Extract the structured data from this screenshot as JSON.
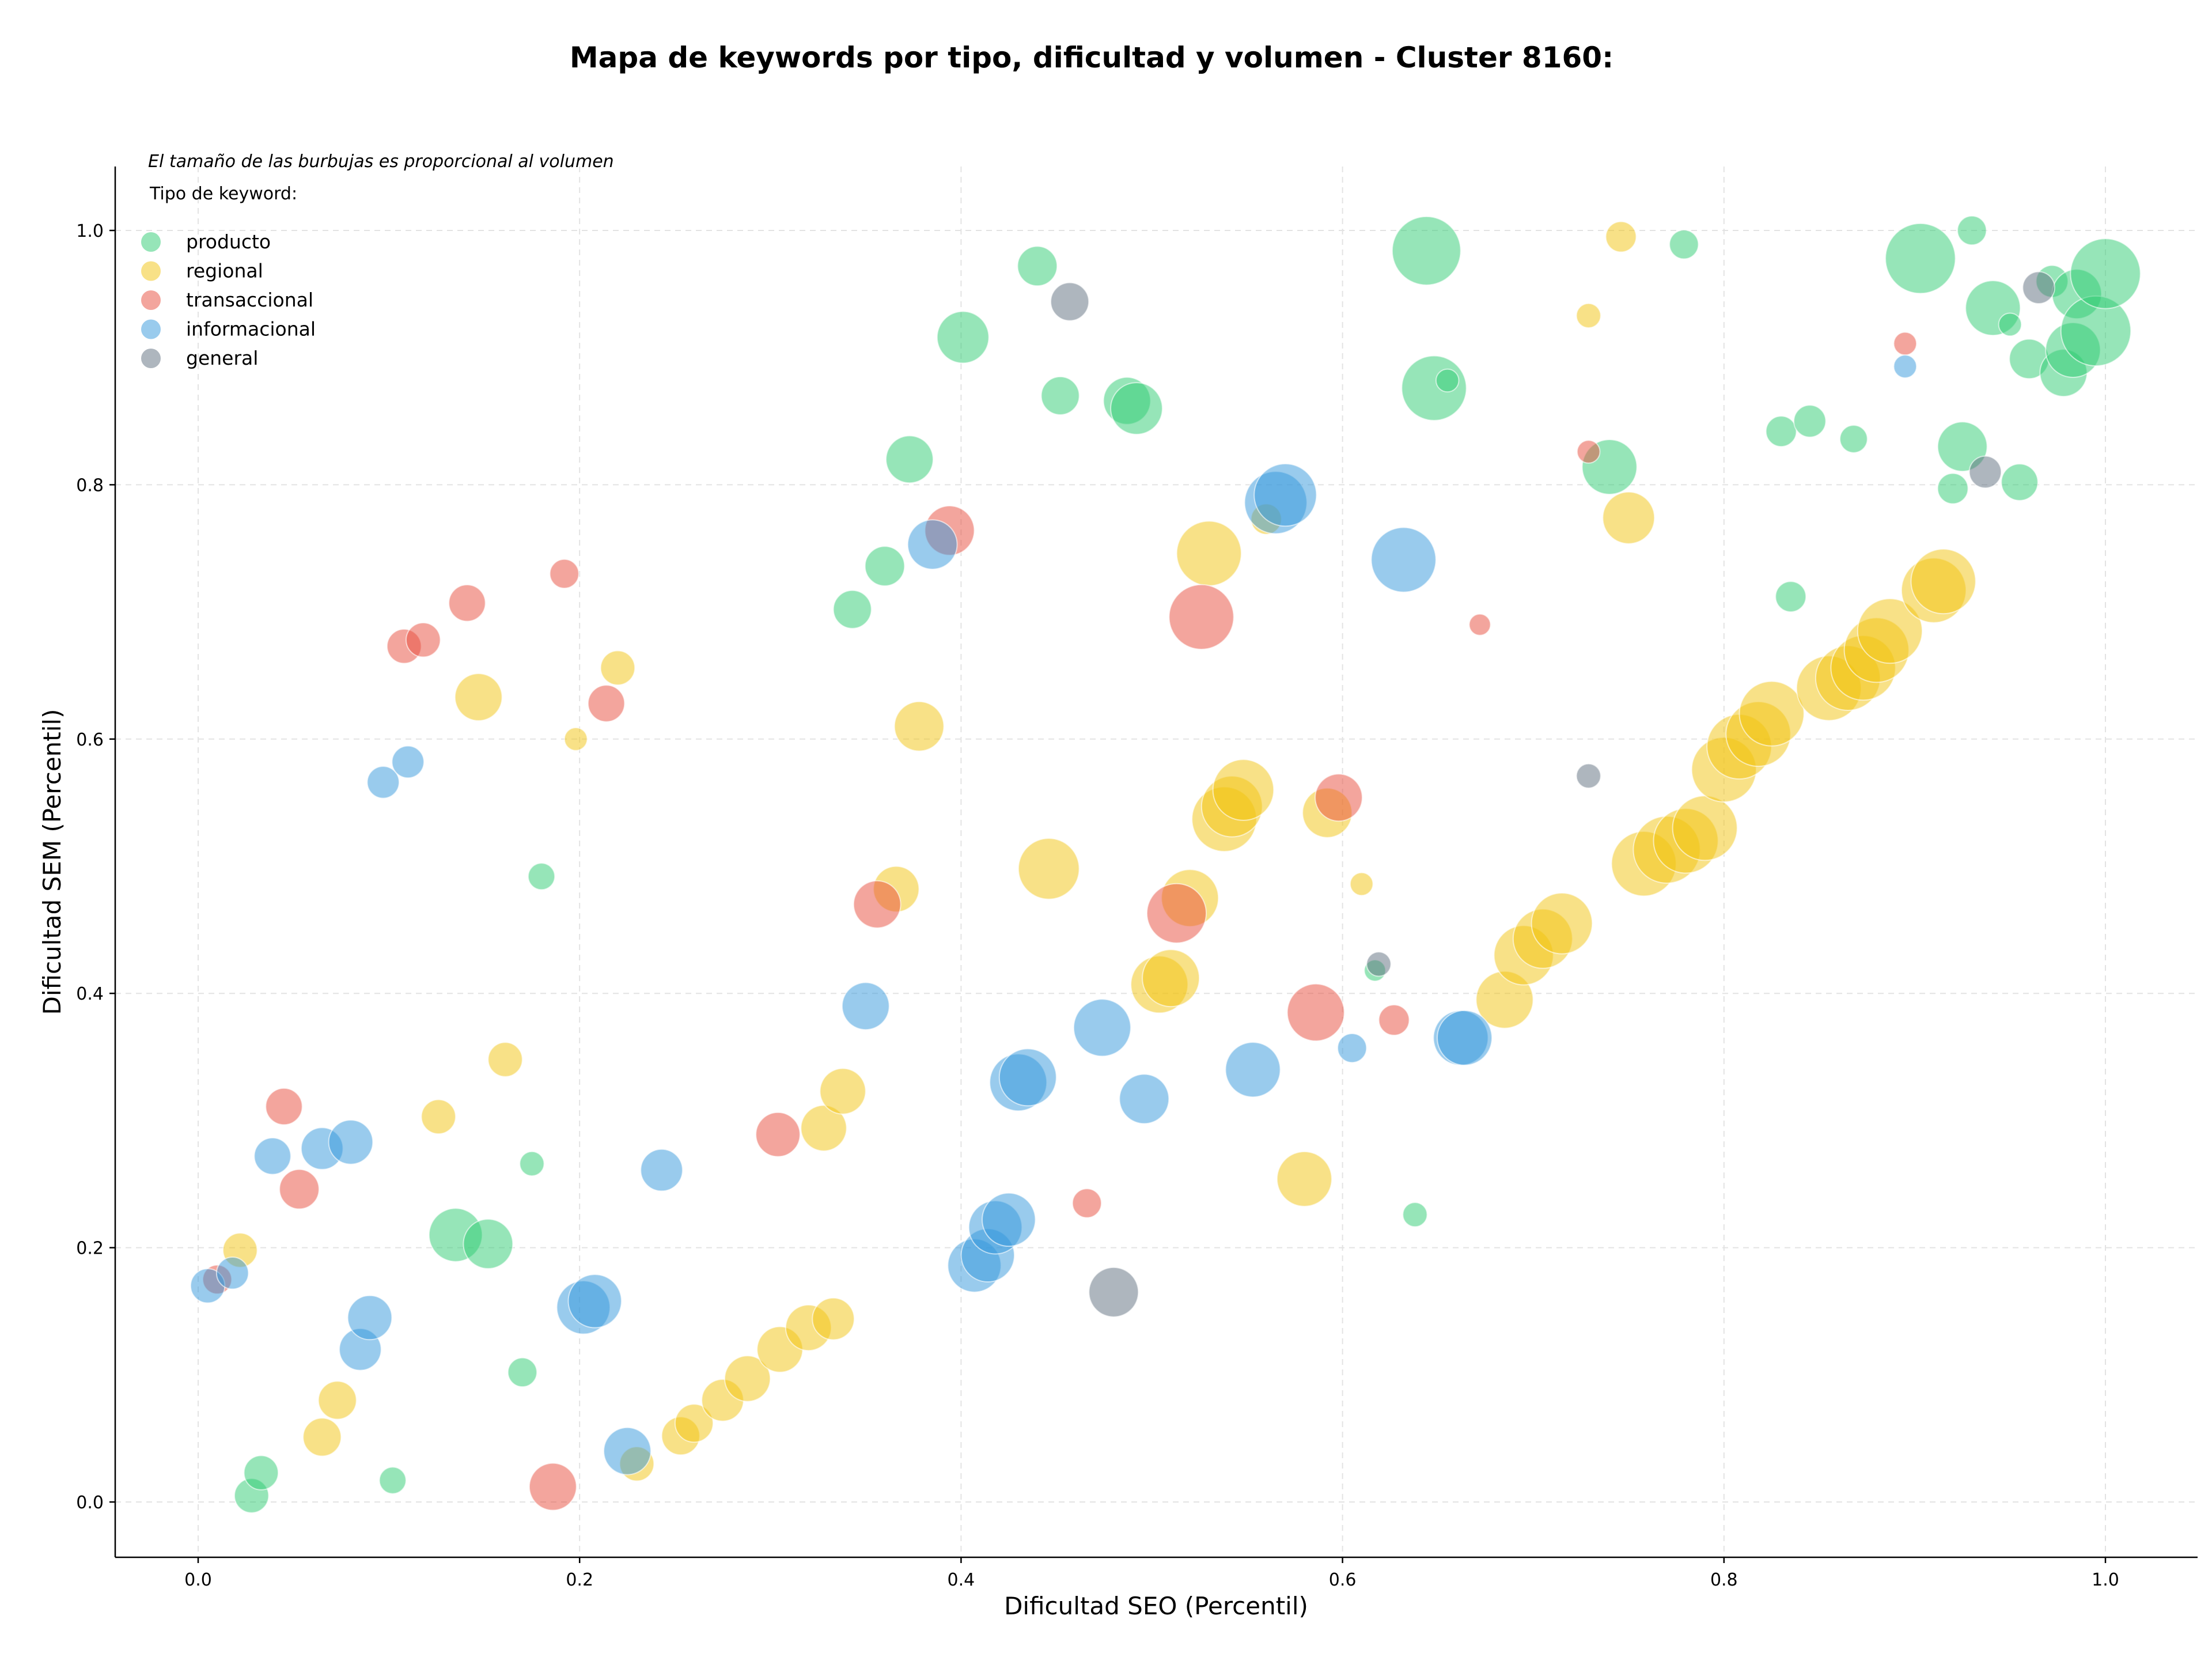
{
  "chart_data": {
    "type": "scatter",
    "title": "Mapa de keywords por tipo, dificultad y volumen - Cluster 8160:",
    "xlabel": "Dificultad SEO (Percentil)",
    "ylabel": "Dificultad SEM (Percentil)",
    "xlim": [
      -0.045,
      1.05
    ],
    "ylim": [
      -0.045,
      1.05
    ],
    "xticks": [
      0.0,
      0.2,
      0.4,
      0.6,
      0.8,
      1.0
    ],
    "yticks": [
      0.0,
      0.2,
      0.4,
      0.6,
      0.8,
      1.0
    ],
    "xtick_labels": [
      "0.0",
      "0.2",
      "0.4",
      "0.6",
      "0.8",
      "1.0"
    ],
    "ytick_labels": [
      "0.0",
      "0.2",
      "0.4",
      "0.6",
      "0.8",
      "1.0"
    ],
    "grid": true,
    "legend_placement": "top-left",
    "size_note": "El tamaño de las burbujas es proporcional al volumen",
    "legend_title": "Tipo de keyword:",
    "series": [
      {
        "name": "producto",
        "color": "#2ecc71",
        "points": [
          [
            0.028,
            0.005,
            0.45
          ],
          [
            0.033,
            0.023,
            0.45
          ],
          [
            0.102,
            0.017,
            0.35
          ],
          [
            0.135,
            0.21,
            0.7
          ],
          [
            0.152,
            0.203,
            0.65
          ],
          [
            0.17,
            0.102,
            0.38
          ],
          [
            0.175,
            0.266,
            0.32
          ],
          [
            0.18,
            0.492,
            0.35
          ],
          [
            0.343,
            0.702,
            0.5
          ],
          [
            0.36,
            0.736,
            0.52
          ],
          [
            0.373,
            0.82,
            0.62
          ],
          [
            0.401,
            0.916,
            0.68
          ],
          [
            0.44,
            0.972,
            0.52
          ],
          [
            0.452,
            0.87,
            0.5
          ],
          [
            0.487,
            0.866,
            0.62
          ],
          [
            0.492,
            0.86,
            0.68
          ],
          [
            0.617,
            0.418,
            0.28
          ],
          [
            0.638,
            0.226,
            0.32
          ],
          [
            0.644,
            0.984,
            0.9
          ],
          [
            0.648,
            0.876,
            0.85
          ],
          [
            0.655,
            0.882,
            0.3
          ],
          [
            0.74,
            0.814,
            0.72
          ],
          [
            0.779,
            0.989,
            0.38
          ],
          [
            0.83,
            0.842,
            0.4
          ],
          [
            0.845,
            0.85,
            0.42
          ],
          [
            0.868,
            0.836,
            0.36
          ],
          [
            0.835,
            0.712,
            0.4
          ],
          [
            0.903,
            0.978,
            0.92
          ],
          [
            0.92,
            0.797,
            0.4
          ],
          [
            0.925,
            0.83,
            0.65
          ],
          [
            0.93,
            1.0,
            0.38
          ],
          [
            0.941,
            0.939,
            0.72
          ],
          [
            0.95,
            0.926,
            0.3
          ],
          [
            0.955,
            0.802,
            0.48
          ],
          [
            0.96,
            0.899,
            0.52
          ],
          [
            0.972,
            0.96,
            0.42
          ],
          [
            0.978,
            0.888,
            0.62
          ],
          [
            0.983,
            0.906,
            0.72
          ],
          [
            0.985,
            0.95,
            0.65
          ],
          [
            0.995,
            0.921,
            0.92
          ],
          [
            1.0,
            0.966,
            0.92
          ]
        ]
      },
      {
        "name": "regional",
        "color": "#f1c40f",
        "points": [
          [
            0.022,
            0.198,
            0.45
          ],
          [
            0.065,
            0.051,
            0.5
          ],
          [
            0.073,
            0.08,
            0.5
          ],
          [
            0.126,
            0.303,
            0.45
          ],
          [
            0.147,
            0.633,
            0.62
          ],
          [
            0.161,
            0.348,
            0.45
          ],
          [
            0.198,
            0.6,
            0.3
          ],
          [
            0.22,
            0.656,
            0.45
          ],
          [
            0.23,
            0.03,
            0.45
          ],
          [
            0.253,
            0.052,
            0.5
          ],
          [
            0.26,
            0.062,
            0.5
          ],
          [
            0.275,
            0.08,
            0.55
          ],
          [
            0.288,
            0.097,
            0.6
          ],
          [
            0.305,
            0.12,
            0.6
          ],
          [
            0.32,
            0.137,
            0.6
          ],
          [
            0.333,
            0.144,
            0.55
          ],
          [
            0.328,
            0.294,
            0.6
          ],
          [
            0.338,
            0.323,
            0.6
          ],
          [
            0.366,
            0.482,
            0.6
          ],
          [
            0.378,
            0.61,
            0.65
          ],
          [
            0.446,
            0.498,
            0.8
          ],
          [
            0.504,
            0.407,
            0.75
          ],
          [
            0.51,
            0.412,
            0.75
          ],
          [
            0.52,
            0.475,
            0.75
          ],
          [
            0.53,
            0.746,
            0.85
          ],
          [
            0.538,
            0.537,
            0.85
          ],
          [
            0.542,
            0.547,
            0.8
          ],
          [
            0.548,
            0.56,
            0.8
          ],
          [
            0.56,
            0.773,
            0.4
          ],
          [
            0.58,
            0.254,
            0.72
          ],
          [
            0.592,
            0.542,
            0.65
          ],
          [
            0.61,
            0.486,
            0.3
          ],
          [
            0.685,
            0.395,
            0.75
          ],
          [
            0.695,
            0.43,
            0.78
          ],
          [
            0.705,
            0.443,
            0.78
          ],
          [
            0.715,
            0.455,
            0.8
          ],
          [
            0.729,
            0.933,
            0.32
          ],
          [
            0.746,
            0.995,
            0.4
          ],
          [
            0.75,
            0.774,
            0.68
          ],
          [
            0.758,
            0.502,
            0.85
          ],
          [
            0.77,
            0.513,
            0.88
          ],
          [
            0.78,
            0.52,
            0.85
          ],
          [
            0.79,
            0.53,
            0.85
          ],
          [
            0.8,
            0.576,
            0.85
          ],
          [
            0.808,
            0.594,
            0.85
          ],
          [
            0.818,
            0.604,
            0.85
          ],
          [
            0.825,
            0.62,
            0.85
          ],
          [
            0.855,
            0.64,
            0.85
          ],
          [
            0.865,
            0.648,
            0.85
          ],
          [
            0.873,
            0.656,
            0.85
          ],
          [
            0.88,
            0.67,
            0.85
          ],
          [
            0.887,
            0.685,
            0.85
          ],
          [
            0.91,
            0.717,
            0.85
          ],
          [
            0.915,
            0.724,
            0.85
          ]
        ]
      },
      {
        "name": "transaccional",
        "color": "#e74c3c",
        "points": [
          [
            0.01,
            0.175,
            0.38
          ],
          [
            0.045,
            0.311,
            0.48
          ],
          [
            0.053,
            0.246,
            0.52
          ],
          [
            0.108,
            0.673,
            0.45
          ],
          [
            0.118,
            0.678,
            0.45
          ],
          [
            0.141,
            0.707,
            0.48
          ],
          [
            0.192,
            0.73,
            0.38
          ],
          [
            0.214,
            0.628,
            0.48
          ],
          [
            0.186,
            0.012,
            0.62
          ],
          [
            0.304,
            0.289,
            0.58
          ],
          [
            0.356,
            0.47,
            0.62
          ],
          [
            0.394,
            0.764,
            0.65
          ],
          [
            0.466,
            0.235,
            0.38
          ],
          [
            0.513,
            0.463,
            0.78
          ],
          [
            0.526,
            0.696,
            0.85
          ],
          [
            0.586,
            0.385,
            0.75
          ],
          [
            0.598,
            0.554,
            0.62
          ],
          [
            0.627,
            0.379,
            0.4
          ],
          [
            0.672,
            0.69,
            0.28
          ],
          [
            0.729,
            0.826,
            0.3
          ],
          [
            0.895,
            0.911,
            0.3
          ]
        ]
      },
      {
        "name": "informacional",
        "color": "#3498db",
        "points": [
          [
            0.005,
            0.17,
            0.45
          ],
          [
            0.018,
            0.18,
            0.42
          ],
          [
            0.039,
            0.272,
            0.48
          ],
          [
            0.065,
            0.278,
            0.55
          ],
          [
            0.08,
            0.283,
            0.58
          ],
          [
            0.085,
            0.12,
            0.55
          ],
          [
            0.09,
            0.145,
            0.58
          ],
          [
            0.097,
            0.566,
            0.42
          ],
          [
            0.11,
            0.582,
            0.42
          ],
          [
            0.202,
            0.153,
            0.7
          ],
          [
            0.208,
            0.158,
            0.7
          ],
          [
            0.225,
            0.04,
            0.62
          ],
          [
            0.243,
            0.261,
            0.55
          ],
          [
            0.35,
            0.39,
            0.62
          ],
          [
            0.385,
            0.753,
            0.65
          ],
          [
            0.407,
            0.186,
            0.7
          ],
          [
            0.414,
            0.194,
            0.7
          ],
          [
            0.418,
            0.216,
            0.7
          ],
          [
            0.425,
            0.222,
            0.7
          ],
          [
            0.43,
            0.33,
            0.75
          ],
          [
            0.435,
            0.334,
            0.75
          ],
          [
            0.474,
            0.373,
            0.75
          ],
          [
            0.496,
            0.317,
            0.65
          ],
          [
            0.553,
            0.34,
            0.72
          ],
          [
            0.565,
            0.786,
            0.82
          ],
          [
            0.57,
            0.792,
            0.82
          ],
          [
            0.605,
            0.357,
            0.38
          ],
          [
            0.632,
            0.741,
            0.85
          ],
          [
            0.662,
            0.365,
            0.72
          ],
          [
            0.664,
            0.365,
            0.72
          ],
          [
            0.895,
            0.893,
            0.3
          ]
        ]
      },
      {
        "name": "general",
        "color": "#5d6d7e",
        "points": [
          [
            0.457,
            0.944,
            0.5
          ],
          [
            0.48,
            0.165,
            0.65
          ],
          [
            0.619,
            0.423,
            0.32
          ],
          [
            0.729,
            0.571,
            0.32
          ],
          [
            0.937,
            0.81,
            0.42
          ],
          [
            0.965,
            0.955,
            0.42
          ]
        ]
      }
    ]
  }
}
